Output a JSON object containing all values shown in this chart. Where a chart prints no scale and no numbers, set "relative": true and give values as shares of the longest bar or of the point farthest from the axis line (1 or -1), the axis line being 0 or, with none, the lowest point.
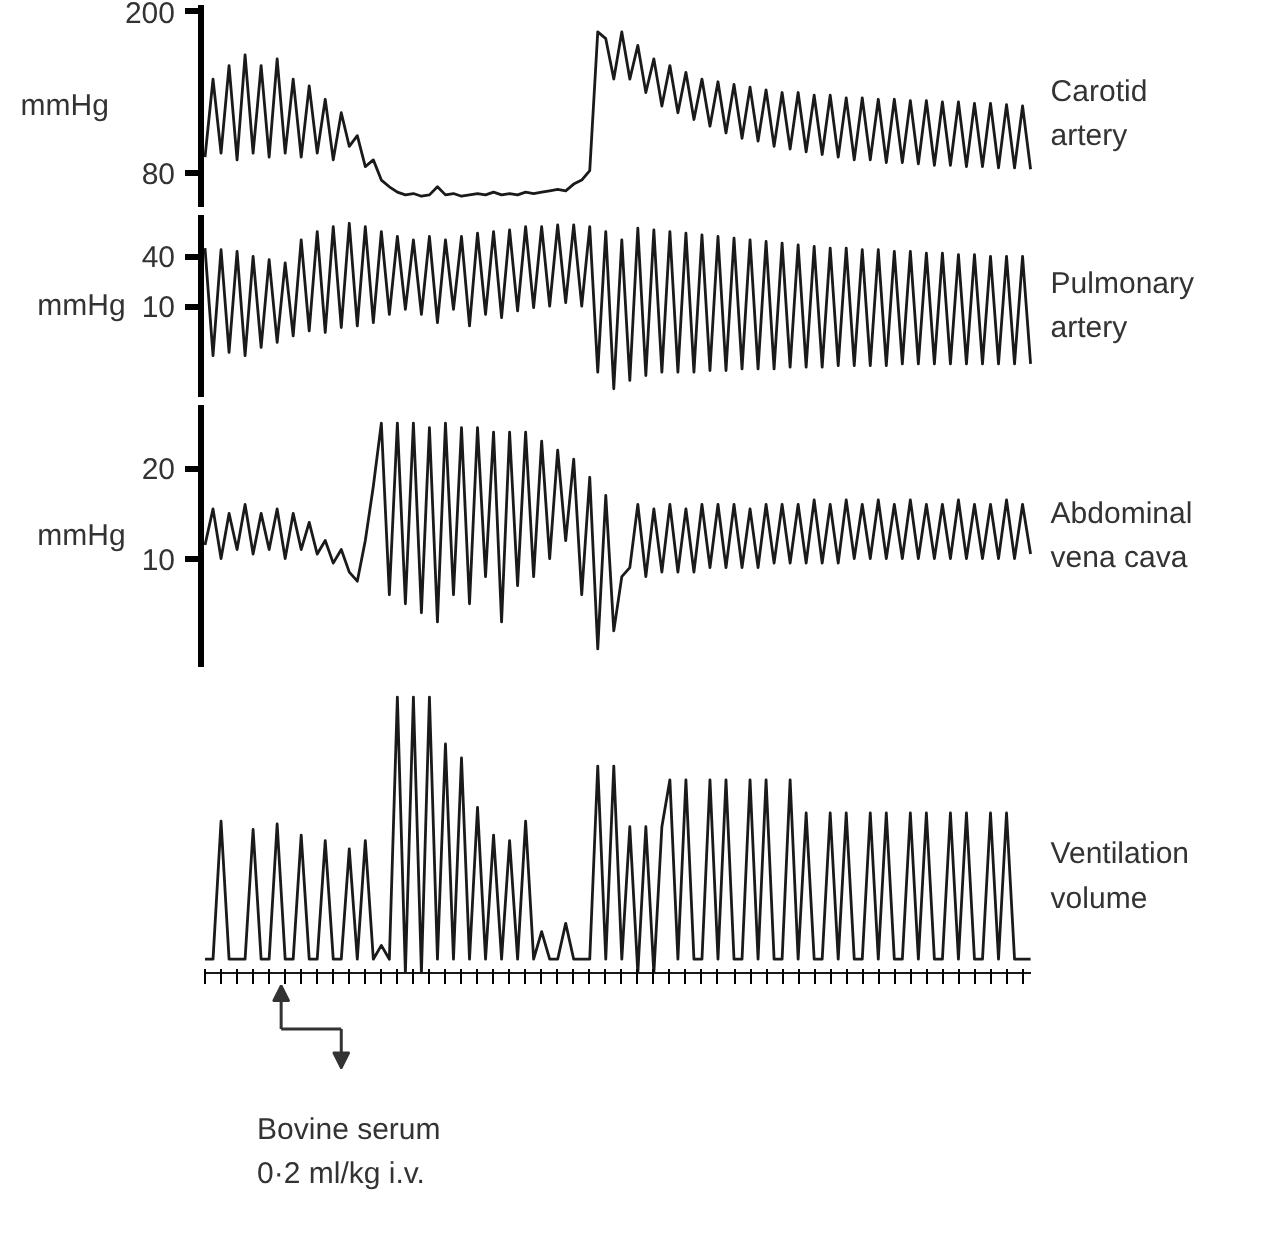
{
  "chart_data": [
    {
      "type": "line",
      "ylabel": "mmHg",
      "ylim": [
        55,
        205
      ],
      "yticks": [
        80,
        200
      ],
      "grid": false,
      "categories": [
        null,
        null,
        null,
        null,
        null,
        null,
        null,
        null,
        null,
        null,
        null,
        null,
        null,
        null,
        null,
        null,
        null,
        null,
        null,
        null,
        null,
        null,
        null,
        null,
        null,
        null,
        null,
        null,
        null,
        null,
        null,
        null,
        null,
        null,
        null,
        null,
        null,
        null,
        null,
        null,
        null,
        null,
        null,
        null,
        null,
        null,
        null,
        null,
        null,
        null,
        null,
        null,
        null,
        null,
        null,
        null,
        null,
        null,
        null,
        null,
        null,
        null,
        null,
        null,
        null,
        null,
        null,
        null,
        null,
        null,
        null,
        null,
        null,
        null,
        null,
        null,
        null,
        null,
        null,
        null,
        null,
        null,
        null,
        null,
        null,
        null,
        null,
        null,
        null,
        null,
        null,
        null,
        null,
        null,
        null,
        null,
        null,
        null,
        null,
        null,
        null,
        null,
        null,
        null
      ],
      "series": [
        {
          "name": "Carotid artery",
          "color": "#1a1a1a",
          "values": [
            92,
            150,
            95,
            160,
            90,
            168,
            95,
            160,
            92,
            165,
            95,
            150,
            92,
            145,
            95,
            135,
            90,
            125,
            100,
            108,
            85,
            90,
            75,
            70,
            66,
            64,
            65,
            63,
            64,
            70,
            64,
            65,
            63,
            64,
            65,
            64,
            66,
            64,
            65,
            64,
            66,
            65,
            66,
            67,
            68,
            67,
            72,
            75,
            82,
            185,
            180,
            150,
            185,
            150,
            175,
            140,
            165,
            130,
            160,
            125,
            155,
            120,
            150,
            115,
            148,
            110,
            146,
            106,
            144,
            104,
            142,
            100,
            140,
            98,
            140,
            96,
            138,
            94,
            138,
            92,
            136,
            90,
            136,
            90,
            135,
            88,
            135,
            88,
            134,
            87,
            134,
            86,
            133,
            86,
            133,
            85,
            132,
            85,
            132,
            84,
            131,
            84,
            130,
            83
          ]
        }
      ]
    },
    {
      "type": "line",
      "ylabel": "mmHg",
      "ylim": [
        -45,
        65
      ],
      "yticks": [
        10,
        40
      ],
      "grid": false,
      "categories": [
        null,
        null,
        null,
        null,
        null,
        null,
        null,
        null,
        null,
        null,
        null,
        null,
        null,
        null,
        null,
        null,
        null,
        null,
        null,
        null,
        null,
        null,
        null,
        null,
        null,
        null,
        null,
        null,
        null,
        null,
        null,
        null,
        null,
        null,
        null,
        null,
        null,
        null,
        null,
        null,
        null,
        null,
        null,
        null,
        null,
        null,
        null,
        null,
        null,
        null,
        null,
        null,
        null,
        null,
        null,
        null,
        null,
        null,
        null,
        null,
        null,
        null,
        null,
        null,
        null,
        null,
        null,
        null,
        null,
        null,
        null,
        null,
        null,
        null,
        null,
        null,
        null,
        null,
        null,
        null,
        null,
        null,
        null,
        null,
        null,
        null,
        null,
        null,
        null,
        null,
        null,
        null,
        null,
        null,
        null,
        null,
        null,
        null,
        null,
        null,
        null,
        null,
        null,
        null
      ],
      "series": [
        {
          "name": "Pulmonary artery",
          "color": "#1a1a1a",
          "values": [
            45,
            -20,
            44,
            -18,
            43,
            -20,
            40,
            -15,
            38,
            -12,
            36,
            -8,
            50,
            -5,
            55,
            -6,
            58,
            -3,
            60,
            -2,
            58,
            0,
            55,
            5,
            52,
            8,
            50,
            5,
            52,
            0,
            50,
            8,
            52,
            -2,
            54,
            5,
            55,
            3,
            56,
            7,
            58,
            9,
            58,
            10,
            59,
            12,
            59,
            10,
            58,
            -30,
            55,
            -40,
            50,
            -35,
            57,
            -32,
            56,
            -30,
            55,
            -30,
            54,
            -30,
            53,
            -29,
            52,
            -29,
            51,
            -28,
            50,
            -28,
            49,
            -28,
            48,
            -27,
            47,
            -27,
            46,
            -27,
            45,
            -26,
            45,
            -26,
            44,
            -26,
            44,
            -26,
            43,
            -25,
            43,
            -25,
            42,
            -25,
            42,
            -25,
            41,
            -25,
            41,
            -25,
            40,
            -25,
            40,
            -25,
            40,
            -25
          ]
        }
      ]
    },
    {
      "type": "line",
      "ylabel": "mmHg",
      "ylim": [
        -2,
        27
      ],
      "yticks": [
        10,
        20
      ],
      "grid": false,
      "categories": [
        null,
        null,
        null,
        null,
        null,
        null,
        null,
        null,
        null,
        null,
        null,
        null,
        null,
        null,
        null,
        null,
        null,
        null,
        null,
        null,
        null,
        null,
        null,
        null,
        null,
        null,
        null,
        null,
        null,
        null,
        null,
        null,
        null,
        null,
        null,
        null,
        null,
        null,
        null,
        null,
        null,
        null,
        null,
        null,
        null,
        null,
        null,
        null,
        null,
        null,
        null,
        null,
        null,
        null,
        null,
        null,
        null,
        null,
        null,
        null,
        null,
        null,
        null,
        null,
        null,
        null,
        null,
        null,
        null,
        null,
        null,
        null,
        null,
        null,
        null,
        null,
        null,
        null,
        null,
        null,
        null,
        null,
        null,
        null,
        null,
        null,
        null,
        null,
        null,
        null,
        null,
        null,
        null,
        null,
        null,
        null,
        null,
        null,
        null,
        null,
        null,
        null,
        null,
        null
      ],
      "series": [
        {
          "name": "Abdominal vena cava",
          "color": "#1a1a1a",
          "values": [
            11.5,
            15.5,
            10,
            15,
            11,
            16,
            10.5,
            15,
            11,
            15.5,
            10,
            15,
            11,
            14,
            10.5,
            12,
            9.5,
            11,
            8.5,
            7.5,
            12,
            18,
            25,
            6,
            25,
            5,
            25,
            4,
            24.5,
            3,
            25,
            6,
            24.5,
            5,
            24.5,
            8,
            24,
            3,
            24,
            7,
            24,
            8,
            23,
            10,
            22,
            12,
            21,
            6,
            19,
            0,
            17,
            2,
            8,
            9,
            16,
            8,
            15.5,
            8.5,
            16,
            8.5,
            15.5,
            8.5,
            16,
            9,
            16,
            9,
            16,
            9,
            15.5,
            9,
            16,
            9.5,
            16,
            9.5,
            16,
            9.5,
            16.5,
            9.5,
            16,
            9.5,
            16.5,
            10,
            16,
            10,
            16.5,
            10,
            16,
            10,
            16.5,
            10,
            16,
            10,
            16,
            10,
            16.5,
            10,
            16,
            10,
            16,
            10,
            16.5,
            10,
            16,
            10.5
          ]
        }
      ]
    },
    {
      "type": "line",
      "relative": true,
      "grid": false,
      "annotations": [
        "Bovine serum 0·2 ml/kg i.v."
      ],
      "categories": [
        null,
        null,
        null,
        null,
        null,
        null,
        null,
        null,
        null,
        null,
        null,
        null,
        null,
        null,
        null,
        null,
        null,
        null,
        null,
        null,
        null,
        null,
        null,
        null,
        null,
        null,
        null,
        null,
        null,
        null,
        null,
        null,
        null,
        null,
        null,
        null,
        null,
        null,
        null,
        null,
        null,
        null,
        null,
        null,
        null,
        null,
        null,
        null,
        null,
        null,
        null,
        null,
        null,
        null,
        null,
        null,
        null,
        null,
        null,
        null,
        null,
        null,
        null,
        null,
        null,
        null,
        null,
        null,
        null,
        null,
        null,
        null,
        null,
        null,
        null,
        null,
        null,
        null,
        null,
        null,
        null,
        null,
        null,
        null,
        null,
        null,
        null,
        null,
        null,
        null,
        null,
        null,
        null,
        null,
        null,
        null,
        null,
        null,
        null,
        null,
        null,
        null,
        null,
        null
      ],
      "series": [
        {
          "name": "Ventilation volume",
          "color": "#1a1a1a",
          "values": [
            0.05,
            0.05,
            0.55,
            0.05,
            0.05,
            0.05,
            0.52,
            0.05,
            0.05,
            0.54,
            0.05,
            0.05,
            0.5,
            0.05,
            0.05,
            0.48,
            0.05,
            0.05,
            0.45,
            0.05,
            0.48,
            0.05,
            0.1,
            0.05,
            1,
            0,
            1,
            0,
            1,
            0.05,
            0.83,
            0.05,
            0.78,
            0.05,
            0.6,
            0.05,
            0.5,
            0.05,
            0.48,
            0.05,
            0.55,
            0.05,
            0.15,
            0.05,
            0.05,
            0.18,
            0.05,
            0.05,
            0.05,
            0.75,
            0.05,
            0.75,
            0.05,
            0.53,
            0,
            0.53,
            0,
            0.53,
            0.7,
            0.05,
            0.7,
            0.05,
            0.05,
            0.7,
            0.05,
            0.7,
            0.05,
            0.05,
            0.7,
            0.05,
            0.7,
            0.05,
            0.05,
            0.7,
            0.05,
            0.58,
            0.05,
            0.05,
            0.58,
            0.05,
            0.58,
            0.05,
            0.05,
            0.58,
            0.05,
            0.58,
            0.05,
            0.05,
            0.58,
            0.05,
            0.58,
            0.05,
            0.05,
            0.58,
            0.05,
            0.58,
            0.05,
            0.05,
            0.58,
            0.05,
            0.58,
            0.05,
            0.05,
            0.05
          ]
        }
      ]
    }
  ]
}
